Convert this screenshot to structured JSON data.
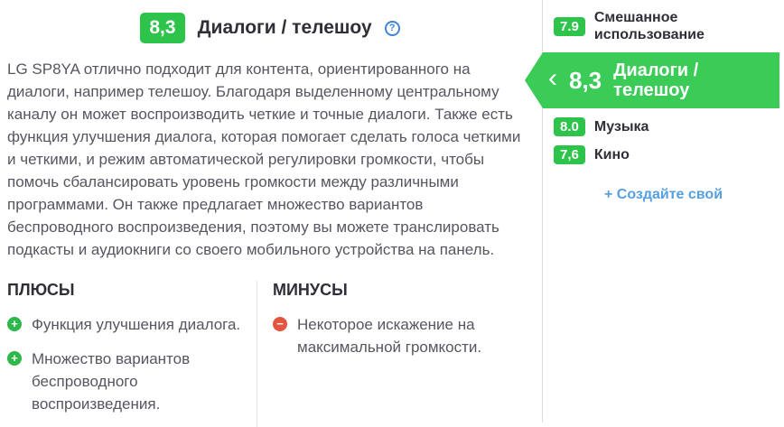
{
  "colors": {
    "score_green": "#2ec44c",
    "banner_green": "#3bcb57",
    "pro_icon_green": "#2db84a",
    "con_icon_red": "#e2553f",
    "link_blue": "#56a0e0",
    "help_icon_blue": "#4285d6",
    "heading_dark": "#2f3037",
    "body_gray": "#55565f",
    "divider_gray": "#e4e4e8"
  },
  "icons": {
    "help": "?",
    "chevron_left": "‹",
    "plus": "+",
    "minus": "−"
  },
  "header": {
    "score": "8,3",
    "title": "Диалоги / телешоу"
  },
  "description": "LG SP8YA отлично подходит для контента, ориентированного на диалоги, например телешоу. Благодаря выделенному центральному каналу он может воспроизводить четкие и точные диалоги. Также есть функция улучшения диалога, которая помогает сделать голоса четкими и четкими, и режим автоматической регулировки громкости, чтобы помочь сбалансировать уровень громкости между различными программами. Он также предлагает множество вариантов беспроводного воспроизведения, поэтому вы можете транслировать подкасты и аудиокниги со своего мобильного устройства на панель.",
  "pros": {
    "title": "ПЛЮСЫ",
    "items": [
      "Функция улучшения диалога.",
      "Множество вариантов беспроводного воспроизведения."
    ]
  },
  "cons": {
    "title": "МИНУСЫ",
    "items": [
      "Некоторое искажение на максимальной громкости."
    ]
  },
  "sidebar": {
    "items": [
      {
        "score": "7.9",
        "label": "Смешанное использование",
        "selected": false
      },
      {
        "score": "8,3",
        "label": "Диалоги / телешоу",
        "selected": true
      },
      {
        "score": "8.0",
        "label": "Музыка",
        "selected": false
      },
      {
        "score": "7,6",
        "label": "Кино",
        "selected": false
      }
    ],
    "create_label": "+ Создайте свой"
  }
}
